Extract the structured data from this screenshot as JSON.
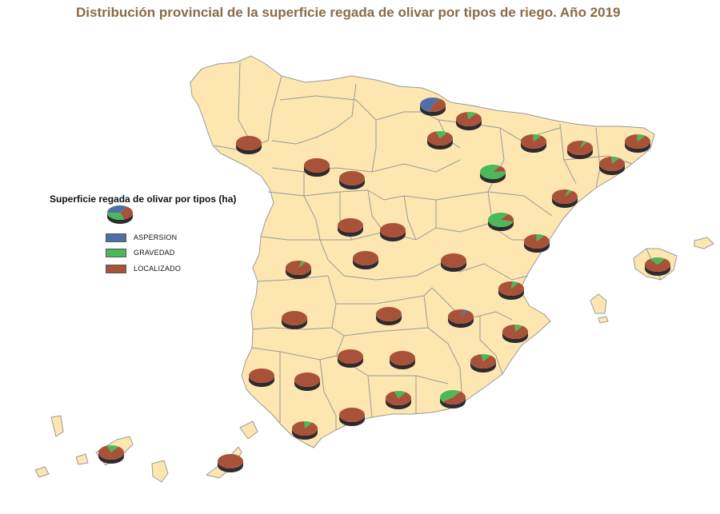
{
  "title": "Distribución provincial de la superficie regada de olivar por tipos de riego. Año 2019",
  "legend": {
    "title": "Superficie regada de olivar por tipos (ha)",
    "items": [
      {
        "label": "ASPERSION",
        "color": "#4f6fa6"
      },
      {
        "label": "GRAVEDAD",
        "color": "#4bb85a"
      },
      {
        "label": "LOCALIZADO",
        "color": "#a9523a"
      }
    ]
  },
  "colors": {
    "land": "#fde6b0",
    "border": "#9a9a9a",
    "aspersion": "#4f6fa6",
    "gravedad": "#4bb85a",
    "localizado": "#a9523a",
    "pie_side": "#2e2a2e"
  },
  "pies": [
    {
      "name": "pie-navarra",
      "aspersion": 0.55,
      "gravedad": 0.0,
      "localizado": 0.45
    },
    {
      "name": "pie-la-rioja",
      "aspersion": 0.0,
      "gravedad": 0.12,
      "localizado": 0.88
    },
    {
      "name": "pie-alava",
      "aspersion": 0.0,
      "gravedad": 0.15,
      "localizado": 0.85
    },
    {
      "name": "pie-huesca",
      "aspersion": 0.0,
      "gravedad": 0.1,
      "localizado": 0.9
    },
    {
      "name": "pie-lleida",
      "aspersion": 0.0,
      "gravedad": 0.05,
      "localizado": 0.95
    },
    {
      "name": "pie-girona",
      "aspersion": 0.0,
      "gravedad": 0.1,
      "localizado": 0.9
    },
    {
      "name": "pie-barcelona",
      "aspersion": 0.0,
      "gravedad": 0.1,
      "localizado": 0.9
    },
    {
      "name": "pie-zaragoza",
      "aspersion": 0.0,
      "gravedad": 0.85,
      "localizado": 0.15
    },
    {
      "name": "pie-tarragona",
      "aspersion": 0.0,
      "gravedad": 0.05,
      "localizado": 0.95
    },
    {
      "name": "pie-teruel",
      "aspersion": 0.0,
      "gravedad": 0.8,
      "localizado": 0.2
    },
    {
      "name": "pie-castellon",
      "aspersion": 0.0,
      "gravedad": 0.1,
      "localizado": 0.9
    },
    {
      "name": "pie-valencia",
      "aspersion": 0.0,
      "gravedad": 0.08,
      "localizado": 0.92
    },
    {
      "name": "pie-alicante",
      "aspersion": 0.0,
      "gravedad": 0.1,
      "localizado": 0.9
    },
    {
      "name": "pie-murcia",
      "aspersion": 0.0,
      "gravedad": 0.12,
      "localizado": 0.88
    },
    {
      "name": "pie-almeria",
      "aspersion": 0.0,
      "gravedad": 0.45,
      "localizado": 0.55
    },
    {
      "name": "pie-granada",
      "aspersion": 0.0,
      "gravedad": 0.15,
      "localizado": 0.85
    },
    {
      "name": "pie-jaen",
      "aspersion": 0.0,
      "gravedad": 0.0,
      "localizado": 1.0
    },
    {
      "name": "pie-cordoba",
      "aspersion": 0.0,
      "gravedad": 0.0,
      "localizado": 1.0
    },
    {
      "name": "pie-sevilla",
      "aspersion": 0.0,
      "gravedad": 0.0,
      "localizado": 1.0
    },
    {
      "name": "pie-huelva",
      "aspersion": 0.0,
      "gravedad": 0.0,
      "localizado": 1.0
    },
    {
      "name": "pie-cadiz",
      "aspersion": 0.0,
      "gravedad": 0.1,
      "localizado": 0.9
    },
    {
      "name": "pie-malaga",
      "aspersion": 0.0,
      "gravedad": 0.0,
      "localizado": 1.0
    },
    {
      "name": "pie-albacete",
      "aspersion": 0.05,
      "gravedad": 0.0,
      "localizado": 0.95
    },
    {
      "name": "pie-ciudad-real",
      "aspersion": 0.0,
      "gravedad": 0.0,
      "localizado": 1.0
    },
    {
      "name": "pie-toledo",
      "aspersion": 0.0,
      "gravedad": 0.0,
      "localizado": 1.0
    },
    {
      "name": "pie-cuenca",
      "aspersion": 0.0,
      "gravedad": 0.0,
      "localizado": 1.0
    },
    {
      "name": "pie-madrid",
      "aspersion": 0.0,
      "gravedad": 0.0,
      "localizado": 1.0
    },
    {
      "name": "pie-avila",
      "aspersion": 0.0,
      "gravedad": 0.0,
      "localizado": 1.0
    },
    {
      "name": "pie-caceres",
      "aspersion": 0.0,
      "gravedad": 0.05,
      "localizado": 0.95
    },
    {
      "name": "pie-badajoz",
      "aspersion": 0.0,
      "gravedad": 0.0,
      "localizado": 1.0
    },
    {
      "name": "pie-salamanca",
      "aspersion": 0.0,
      "gravedad": 0.0,
      "localizado": 1.0
    },
    {
      "name": "pie-zamora",
      "aspersion": 0.0,
      "gravedad": 0.0,
      "localizado": 1.0
    },
    {
      "name": "pie-leon",
      "aspersion": 0.0,
      "gravedad": 0.0,
      "localizado": 1.0
    },
    {
      "name": "pie-ourense",
      "aspersion": 0.0,
      "gravedad": 0.0,
      "localizado": 1.0
    },
    {
      "name": "pie-baleares",
      "aspersion": 0.0,
      "gravedad": 0.2,
      "localizado": 0.8
    },
    {
      "name": "pie-santa-cruz-tenerife",
      "aspersion": 0.0,
      "gravedad": 0.15,
      "localizado": 0.85
    },
    {
      "name": "pie-las-palmas",
      "aspersion": 0.0,
      "gravedad": 0.0,
      "localizado": 1.0
    }
  ]
}
